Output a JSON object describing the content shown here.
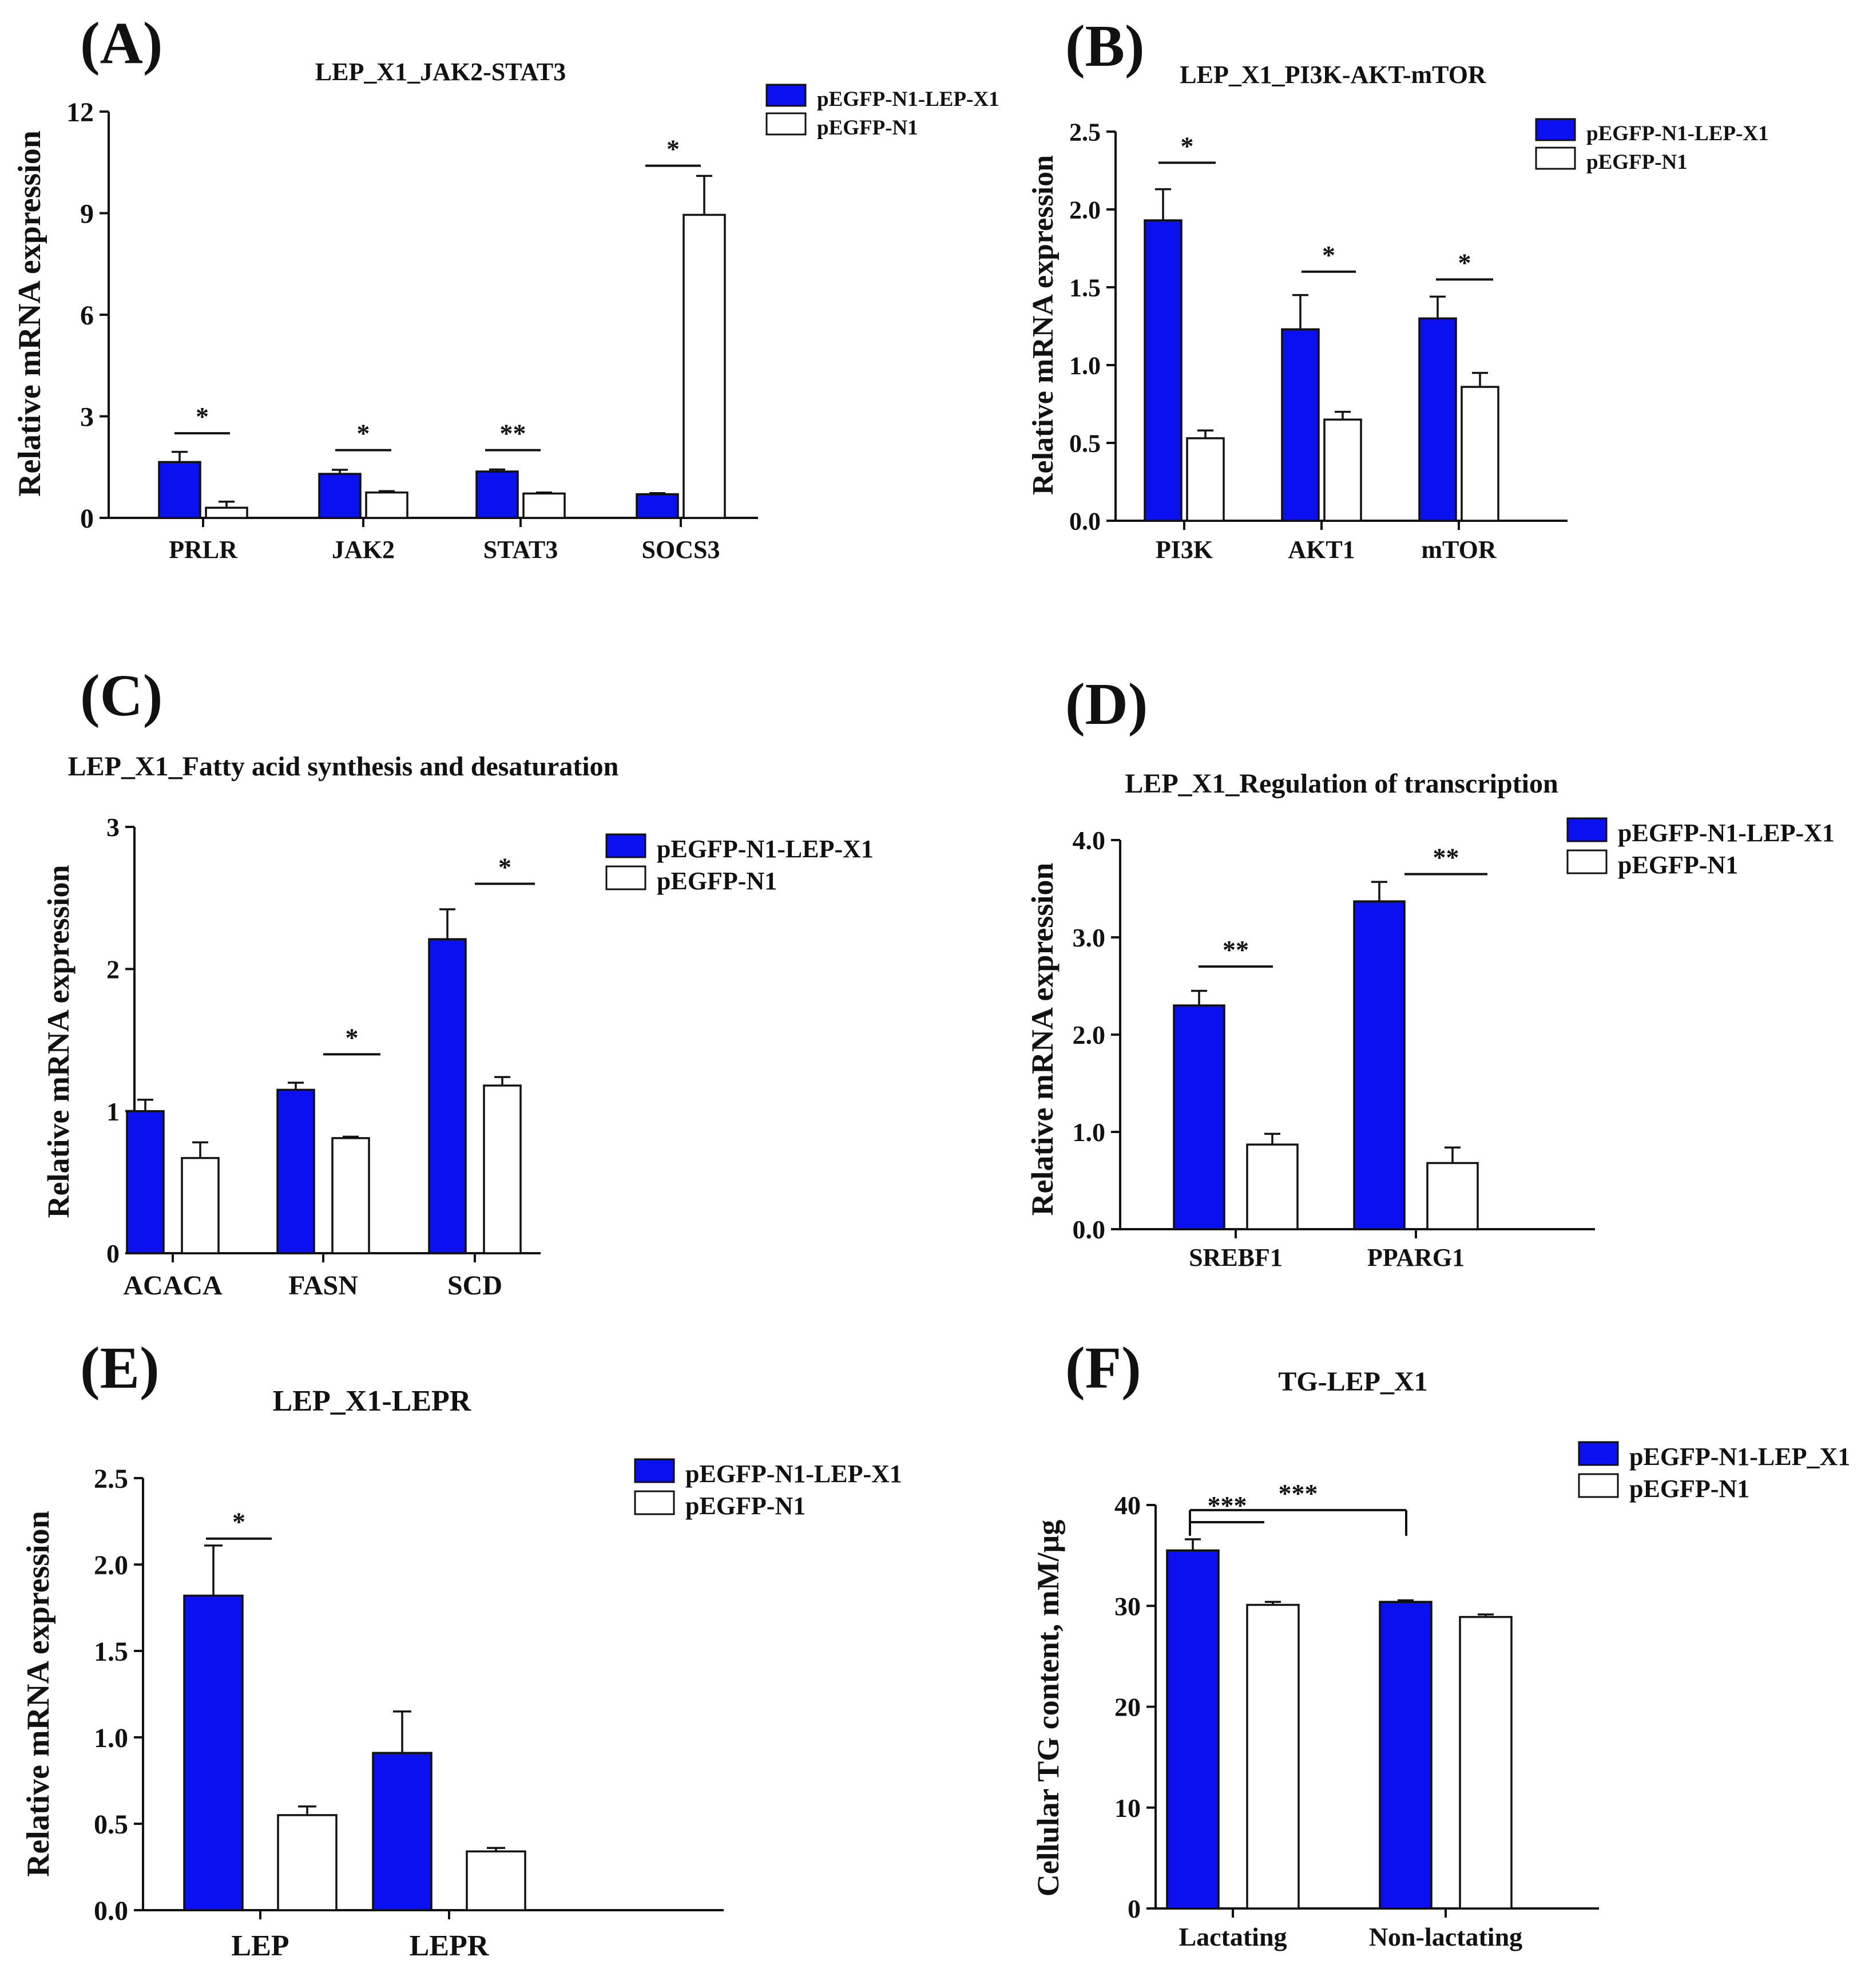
{
  "colors": {
    "treatment": "#0a10ee",
    "control": "#ffffff",
    "ink": "#111111"
  },
  "chart_data": [
    {
      "id": "A",
      "type": "bar",
      "panel_label": "(A)",
      "title": "LEP_X1_JAK2-STAT3",
      "ylabel": "Relative mRNA expression",
      "xlabel": "",
      "ylim": [
        0,
        12
      ],
      "yticks": [
        "0",
        "3",
        "6",
        "9",
        "12"
      ],
      "categories": [
        "PRLR",
        "JAK2",
        "STAT3",
        "SOCS3"
      ],
      "series": [
        {
          "name": "pEGFP-N1-LEP-X1",
          "values": [
            1.65,
            1.3,
            1.37,
            0.7
          ],
          "errors": [
            0.3,
            0.12,
            0.06,
            0.03
          ]
        },
        {
          "name": "pEGFP-N1",
          "values": [
            0.3,
            0.75,
            0.72,
            8.95
          ],
          "errors": [
            0.18,
            0.04,
            0.03,
            1.15
          ]
        }
      ],
      "significance": [
        {
          "label": "*",
          "category": "PRLR"
        },
        {
          "label": "*",
          "category": "JAK2"
        },
        {
          "label": "**",
          "category": "STAT3"
        },
        {
          "label": "*",
          "category": "SOCS3"
        }
      ],
      "legend": "top-right"
    },
    {
      "id": "B",
      "type": "bar",
      "panel_label": "(B)",
      "title": "LEP_X1_PI3K-AKT-mTOR",
      "ylabel": "Relative mRNA expression",
      "xlabel": "",
      "ylim": [
        0,
        2.5
      ],
      "yticks": [
        "0.0",
        "0.5",
        "1.0",
        "1.5",
        "2.0",
        "2.5"
      ],
      "categories": [
        "PI3K",
        "AKT1",
        "mTOR"
      ],
      "series": [
        {
          "name": "pEGFP-N1-LEP-X1",
          "values": [
            1.93,
            1.23,
            1.3
          ],
          "errors": [
            0.2,
            0.22,
            0.14
          ]
        },
        {
          "name": "pEGFP-N1",
          "values": [
            0.53,
            0.65,
            0.86
          ],
          "errors": [
            0.05,
            0.05,
            0.09
          ]
        }
      ],
      "significance": [
        {
          "label": "*",
          "category": "PI3K"
        },
        {
          "label": "*",
          "category": "AKT1"
        },
        {
          "label": "*",
          "category": "mTOR"
        }
      ],
      "legend": "top-right"
    },
    {
      "id": "C",
      "type": "bar",
      "panel_label": "(C)",
      "title": "LEP_X1_Fatty acid synthesis and desaturation",
      "ylabel": "Relative mRNA expression",
      "xlabel": "",
      "ylim": [
        0,
        3
      ],
      "yticks": [
        "0",
        "1",
        "2",
        "3"
      ],
      "categories": [
        "ACACA",
        "FASN",
        "SCD"
      ],
      "series": [
        {
          "name": "pEGFP-N1-LEP-X1",
          "values": [
            1.0,
            1.15,
            2.21
          ],
          "errors": [
            0.08,
            0.05,
            0.21
          ]
        },
        {
          "name": "pEGFP-N1",
          "values": [
            0.67,
            0.81,
            1.18
          ],
          "errors": [
            0.11,
            0.01,
            0.06
          ]
        }
      ],
      "significance": [
        {
          "label": "*",
          "category": "FASN"
        },
        {
          "label": "*",
          "category": "SCD"
        }
      ],
      "legend": "top-right"
    },
    {
      "id": "D",
      "type": "bar",
      "panel_label": "(D)",
      "title": "LEP_X1_Regulation of transcription",
      "ylabel": "Relative mRNA expression",
      "xlabel": "",
      "ylim": [
        0,
        4.0
      ],
      "yticks": [
        "0.0",
        "1.0",
        "2.0",
        "3.0",
        "4.0"
      ],
      "categories": [
        "SREBF1",
        "PPARG1"
      ],
      "series": [
        {
          "name": "pEGFP-N1-LEP-X1",
          "values": [
            2.3,
            3.37
          ],
          "errors": [
            0.15,
            0.2
          ]
        },
        {
          "name": "pEGFP-N1",
          "values": [
            0.87,
            0.68
          ],
          "errors": [
            0.11,
            0.16
          ]
        }
      ],
      "significance": [
        {
          "label": "**",
          "category": "SREBF1"
        },
        {
          "label": "**",
          "category": "PPARG1"
        }
      ],
      "legend": "top-right"
    },
    {
      "id": "E",
      "type": "bar",
      "panel_label": "(E)",
      "title": "LEP_X1-LEPR",
      "ylabel": "Relative mRNA expression",
      "xlabel": "",
      "ylim": [
        0,
        2.5
      ],
      "yticks": [
        "0.0",
        "0.5",
        "1.0",
        "1.5",
        "2.0",
        "2.5"
      ],
      "categories": [
        "LEP",
        "LEPR"
      ],
      "series": [
        {
          "name": "pEGFP-N1-LEP-X1",
          "values": [
            1.82,
            0.91
          ],
          "errors": [
            0.29,
            0.24
          ]
        },
        {
          "name": "pEGFP-N1",
          "values": [
            0.55,
            0.34
          ],
          "errors": [
            0.05,
            0.02
          ]
        }
      ],
      "significance": [
        {
          "label": "*",
          "category": "LEP"
        }
      ],
      "legend": "top-right"
    },
    {
      "id": "F",
      "type": "bar",
      "panel_label": "(F)",
      "title": "TG-LEP_X1",
      "ylabel": "Cellular TG content, mM/μg",
      "xlabel": "",
      "ylim": [
        0,
        40
      ],
      "yticks": [
        "0",
        "10",
        "20",
        "30",
        "40"
      ],
      "categories": [
        "Lactating",
        "Non-lactating"
      ],
      "series": [
        {
          "name": "pEGFP-N1-LEP_X1",
          "values": [
            35.5,
            30.4
          ],
          "errors": [
            1.1,
            0.15
          ]
        },
        {
          "name": "pEGFP-N1",
          "values": [
            30.1,
            28.9
          ],
          "errors": [
            0.3,
            0.25
          ]
        }
      ],
      "significance": [
        {
          "label": "***",
          "category": "Lactating"
        },
        {
          "label": "***",
          "span": [
            "Lactating",
            "Non-lactating"
          ]
        }
      ],
      "legend": "top-right"
    }
  ]
}
